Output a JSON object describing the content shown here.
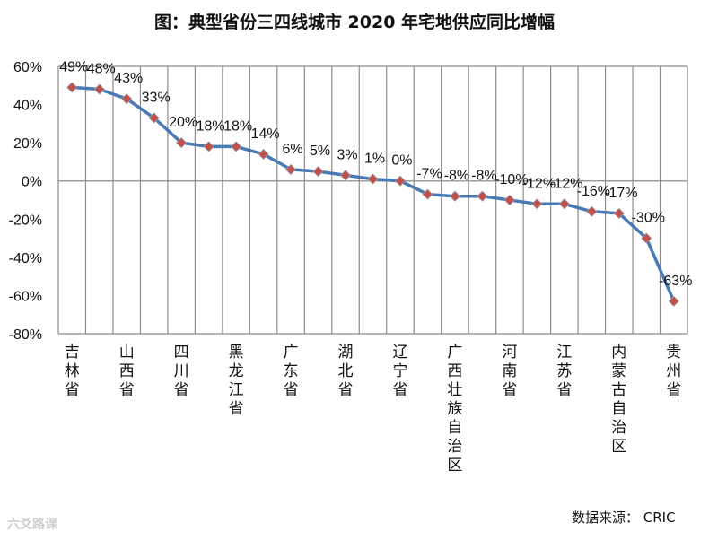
{
  "chart_data": {
    "type": "line",
    "title": "图：典型省份三四线城市 2020 年宅地供应同比增幅",
    "xlabel": "",
    "ylabel": "",
    "ylim": [
      -80,
      60
    ],
    "y_step": 20,
    "y_tick_labels": [
      "60%",
      "40%",
      "20%",
      "0%",
      "-20%",
      "-40%",
      "-60%",
      "-80%"
    ],
    "categories": [
      "吉林省",
      "",
      "山西省",
      "",
      "四川省",
      "",
      "黑龙江省",
      "",
      "广东省",
      "",
      "湖北省",
      "",
      "辽宁省",
      "",
      "广西壮族自治区",
      "",
      "河南省",
      "",
      "江苏省",
      "",
      "内蒙古自治区",
      "",
      "贵州省"
    ],
    "series": [
      {
        "name": "宅地供应同比增幅",
        "color": "#4a7ab5",
        "marker_color": "#c0504d",
        "values": [
          49,
          48,
          43,
          33,
          20,
          18,
          18,
          14,
          6,
          5,
          3,
          1,
          0,
          -7,
          -8,
          -8,
          -10,
          -12,
          -12,
          -16,
          -17,
          -30,
          -63
        ],
        "labels": [
          "49%",
          "48%",
          "43%",
          "33%",
          "20%",
          "18%",
          "18%",
          "14%",
          "6%",
          "5%",
          "3%",
          "1%",
          "0%",
          "-7%",
          "-8%",
          "-8%",
          "-10%",
          "-12%",
          "-12%",
          "-16%",
          "-17%",
          "-30%",
          "-63%"
        ]
      }
    ],
    "grid": true,
    "legend": "none"
  },
  "footer": {
    "source": "数据来源： CRIC",
    "watermark": "六爻路课"
  }
}
